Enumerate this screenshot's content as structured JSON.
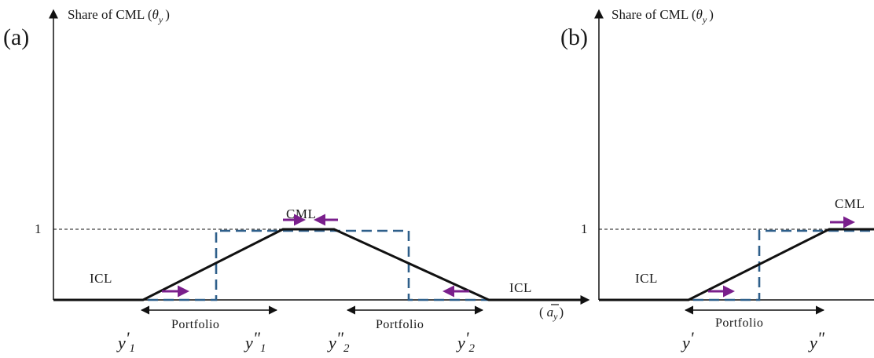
{
  "figure": {
    "panel_a": {
      "label": "(a)",
      "y_axis_title": "Share of CML (",
      "y_axis_symbol": "θ",
      "y_axis_symbol_sub": "y",
      "y_axis_title_end": ")",
      "y_tick": "1",
      "x_axis_symbol": "a",
      "x_axis_symbol_sub": "y",
      "region_left": "ICL",
      "region_top": "CML",
      "region_right": "ICL",
      "portfolio_left": "Portfolio",
      "portfolio_right": "Portfolio",
      "x_labels": [
        {
          "base": "y",
          "prime": "'",
          "sub": "1"
        },
        {
          "base": "y",
          "prime": "\"",
          "sub": "1"
        },
        {
          "base": "y",
          "prime": "\"",
          "sub": "2"
        },
        {
          "base": "y",
          "prime": "'",
          "sub": "2"
        }
      ]
    },
    "panel_b": {
      "label": "(b)",
      "y_axis_title": "Share of CML (",
      "y_axis_symbol": "θ",
      "y_axis_symbol_sub": "y",
      "y_axis_title_end": ")",
      "y_tick": "1",
      "region_left": "ICL",
      "region_top": "CML",
      "portfolio": "Portfolio",
      "x_labels": [
        {
          "base": "y",
          "prime": "'"
        },
        {
          "base": "y",
          "prime": "\""
        }
      ]
    },
    "colors": {
      "solid_line": "#111111",
      "dashed_line": "#2e5f8a",
      "arrow": "#7a1f8c",
      "axis": "#111111"
    }
  }
}
